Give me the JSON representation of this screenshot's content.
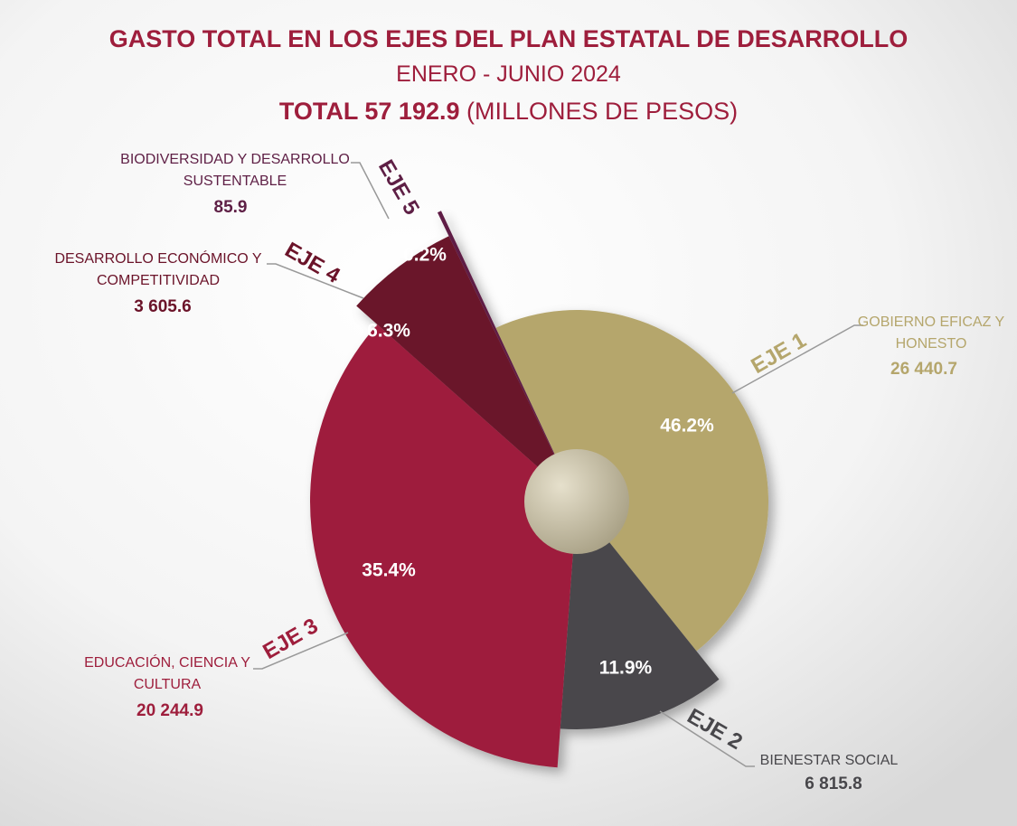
{
  "chart_data": {
    "type": "pie",
    "title": "GASTO TOTAL EN LOS EJES DEL PLAN ESTATAL DE DESARROLLO",
    "subtitle": "ENERO - JUNIO 2024",
    "total_label": "TOTAL 57 192.9",
    "total_unit": "(MILLONES DE PESOS)",
    "categories": [
      "GOBIERNO EFICAZ Y HONESTO",
      "BIENESTAR SOCIAL",
      "EDUCACIÓN, CIENCIA Y CULTURA",
      "DESARROLLO ECONÓMICO Y COMPETITIVIDAD",
      "BIODIVERSIDAD Y DESARROLLO SUSTENTABLE"
    ],
    "eje_labels": [
      "EJE 1",
      "EJE 2",
      "EJE 3",
      "EJE 4",
      "EJE 5"
    ],
    "values": [
      46.2,
      11.9,
      35.4,
      6.3,
      0.2
    ],
    "value_labels": [
      "46.2%",
      "11.9%",
      "35.4%",
      "6.3%",
      "0.2%"
    ],
    "amounts": [
      26440.7,
      6815.8,
      20244.9,
      3605.6,
      85.9
    ],
    "amount_labels": [
      "26 440.7",
      "6 815.8",
      "20 244.9",
      "3 605.6",
      "85.9"
    ],
    "colors": [
      "#b5a66c",
      "#48474b",
      "#9e1e3c",
      "#6b1329",
      "#5e1f45"
    ]
  }
}
